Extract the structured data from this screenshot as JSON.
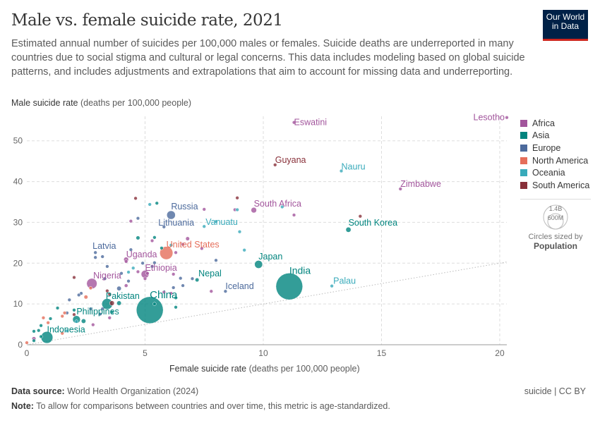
{
  "header": {
    "title": "Male vs. female suicide rate, 2021",
    "subtitle": "Estimated annual number of suicides per 100,000 males or females. Suicide deaths are underreported in many countries due to social stigma and cultural or legal concerns. This data includes modeling based on global suicide patterns, and includes adjustments and extrapolations that aim to account for missing data and underreporting.",
    "logo": "Our World in Data"
  },
  "footer": {
    "source_label": "Data source:",
    "source": "World Health Organization (2024)",
    "note_label": "Note:",
    "note": "To allow for comparisons between countries and over time, this metric is age-standardized.",
    "license": "suicide | CC BY"
  },
  "size_legend": {
    "big": "1.4B",
    "small": "600M",
    "caption": "Circles sized by",
    "variable": "Population"
  },
  "chart_data": {
    "type": "scatter",
    "title": "Male vs. female suicide rate, 2021",
    "xlabel": "Female suicide rate",
    "xunit": "(deaths per 100,000 people)",
    "ylabel": "Male suicide rate",
    "yunit": "(deaths per 100,000 people)",
    "xlim": [
      0,
      20.3
    ],
    "ylim": [
      0,
      56
    ],
    "xticks": [
      0,
      5,
      10,
      15,
      20
    ],
    "yticks": [
      0,
      10,
      20,
      30,
      40,
      50
    ],
    "grid": true,
    "reference_line": "y = x (dotted)",
    "legend_position": "right",
    "regions": [
      {
        "name": "Africa",
        "color": "#a2559c"
      },
      {
        "name": "Asia",
        "color": "#00847e"
      },
      {
        "name": "Europe",
        "color": "#4c6a9c"
      },
      {
        "name": "North America",
        "color": "#e56e5a"
      },
      {
        "name": "Oceania",
        "color": "#38aaba"
      },
      {
        "name": "South America",
        "color": "#883039"
      }
    ],
    "labeled_points": [
      {
        "name": "Eswatini",
        "x": 11.3,
        "y": 54.5,
        "region": "Africa",
        "pop": 1.2
      },
      {
        "name": "Lesotho",
        "x": 20.3,
        "y": 55.7,
        "region": "Africa",
        "pop": 2.3
      },
      {
        "name": "Guyana",
        "x": 10.5,
        "y": 44.1,
        "region": "South America",
        "pop": 0.8
      },
      {
        "name": "Nauru",
        "x": 13.3,
        "y": 42.6,
        "region": "Oceania",
        "pop": 0.01
      },
      {
        "name": "Zimbabwe",
        "x": 15.8,
        "y": 38.2,
        "region": "Africa",
        "pop": 16
      },
      {
        "name": "South Africa",
        "x": 9.6,
        "y": 33.0,
        "region": "Africa",
        "pop": 60
      },
      {
        "name": "South Korea",
        "x": 13.6,
        "y": 28.2,
        "region": "Asia",
        "pop": 52
      },
      {
        "name": "Russia",
        "x": 6.1,
        "y": 31.8,
        "region": "Europe",
        "pop": 145
      },
      {
        "name": "Lithuania",
        "x": 5.8,
        "y": 28.9,
        "region": "Europe",
        "pop": 2.8
      },
      {
        "name": "Vanuatu",
        "x": 7.5,
        "y": 29.0,
        "region": "Oceania",
        "pop": 0.3
      },
      {
        "name": "United States",
        "x": 5.9,
        "y": 22.5,
        "region": "North America",
        "pop": 337
      },
      {
        "name": "Uganda",
        "x": 4.2,
        "y": 20.9,
        "region": "Africa",
        "pop": 45
      },
      {
        "name": "Latvia",
        "x": 2.9,
        "y": 22.6,
        "region": "Europe",
        "pop": 1.9
      },
      {
        "name": "Japan",
        "x": 9.8,
        "y": 19.7,
        "region": "Asia",
        "pop": 125
      },
      {
        "name": "Ethiopia",
        "x": 5.0,
        "y": 17.3,
        "region": "Africa",
        "pop": 120
      },
      {
        "name": "Nepal",
        "x": 7.2,
        "y": 15.9,
        "region": "Asia",
        "pop": 30
      },
      {
        "name": "Nigeria",
        "x": 2.75,
        "y": 15.0,
        "region": "Africa",
        "pop": 213
      },
      {
        "name": "India",
        "x": 11.1,
        "y": 14.3,
        "region": "Asia",
        "pop": 1410
      },
      {
        "name": "Palau",
        "x": 12.9,
        "y": 14.4,
        "region": "Oceania",
        "pop": 0.02
      },
      {
        "name": "Iceland",
        "x": 8.4,
        "y": 13.1,
        "region": "Europe",
        "pop": 0.4
      },
      {
        "name": "China",
        "x": 5.2,
        "y": 8.5,
        "region": "Asia",
        "pop": 1420
      },
      {
        "name": "Pakistan",
        "x": 3.4,
        "y": 10.0,
        "region": "Asia",
        "pop": 230
      },
      {
        "name": "Philippines",
        "x": 2.1,
        "y": 6.2,
        "region": "Asia",
        "pop": 114
      },
      {
        "name": "Indonesia",
        "x": 0.85,
        "y": 1.8,
        "region": "Asia",
        "pop": 274
      }
    ],
    "other_points": [
      [
        4.6,
        35.9,
        "South America",
        5
      ],
      [
        5.2,
        34.4,
        "Oceania",
        1
      ],
      [
        5.5,
        34.7,
        "Asia",
        7
      ],
      [
        4.4,
        30.3,
        "Africa",
        3
      ],
      [
        4.7,
        31.0,
        "Europe",
        9
      ],
      [
        7.5,
        33.2,
        "Africa",
        5
      ],
      [
        8.8,
        33.1,
        "Africa",
        3
      ],
      [
        8.9,
        33.1,
        "Oceania",
        0.5
      ],
      [
        8.9,
        36.0,
        "South America",
        1
      ],
      [
        10.8,
        33.8,
        "Oceania",
        0.2
      ],
      [
        11.3,
        31.8,
        "Africa",
        1
      ],
      [
        14.1,
        31.5,
        "South America",
        1
      ],
      [
        8.0,
        30.2,
        "Oceania",
        0.1
      ],
      [
        9.0,
        27.7,
        "Oceania",
        0.1
      ],
      [
        4.7,
        26.2,
        "Asia",
        30
      ],
      [
        5.3,
        25.5,
        "Africa",
        5
      ],
      [
        5.4,
        26.3,
        "Asia",
        3
      ],
      [
        6.8,
        26.0,
        "Africa",
        30
      ],
      [
        7.4,
        23.6,
        "Africa",
        3
      ],
      [
        9.2,
        23.2,
        "Oceania",
        0.3
      ],
      [
        6.1,
        24.4,
        "Oceania",
        0.2
      ],
      [
        6.6,
        24.6,
        "Africa",
        5
      ],
      [
        5.7,
        23.7,
        "Asia",
        10
      ],
      [
        4.4,
        23.3,
        "Europe",
        4
      ],
      [
        4.2,
        20.4,
        "Africa",
        10
      ],
      [
        6.3,
        22.6,
        "Africa",
        15
      ],
      [
        2.9,
        21.4,
        "Europe",
        1
      ],
      [
        3.2,
        21.6,
        "Europe",
        6
      ],
      [
        8.0,
        20.7,
        "Europe",
        2
      ],
      [
        4.9,
        20.0,
        "Europe",
        2
      ],
      [
        5.3,
        19.2,
        "Europe",
        3
      ],
      [
        5.4,
        20.1,
        "Europe",
        2
      ],
      [
        3.4,
        19.2,
        "Europe",
        10
      ],
      [
        4.0,
        17.5,
        "Europe",
        7
      ],
      [
        4.3,
        17.8,
        "Oceania",
        0.2
      ],
      [
        4.7,
        17.9,
        "Africa",
        4
      ],
      [
        5.0,
        16.2,
        "Africa",
        8
      ],
      [
        5.1,
        17.5,
        "Africa",
        4
      ],
      [
        6.2,
        17.3,
        "Africa",
        3
      ],
      [
        7.0,
        16.2,
        "Europe",
        4
      ],
      [
        3.9,
        13.8,
        "Europe",
        40
      ],
      [
        4.2,
        14.5,
        "Africa",
        25
      ],
      [
        4.3,
        15.6,
        "Europe",
        2
      ],
      [
        3.3,
        16.2,
        "Europe",
        2
      ],
      [
        2.0,
        16.5,
        "South America",
        3
      ],
      [
        2.7,
        13.9,
        "North America",
        2
      ],
      [
        6.2,
        14.0,
        "Europe",
        5
      ],
      [
        6.6,
        14.5,
        "Europe",
        3
      ],
      [
        7.8,
        13.1,
        "Africa",
        5
      ],
      [
        6.1,
        12.6,
        "Africa",
        3
      ],
      [
        6.3,
        11.5,
        "Asia",
        15
      ],
      [
        3.4,
        13.2,
        "South America",
        3
      ],
      [
        3.5,
        12.4,
        "South America",
        18
      ],
      [
        2.5,
        11.7,
        "North America",
        30
      ],
      [
        2.2,
        12.2,
        "Europe",
        1
      ],
      [
        1.8,
        11.0,
        "Europe",
        1
      ],
      [
        2.3,
        12.6,
        "Europe",
        2
      ],
      [
        3.6,
        10.2,
        "South America",
        45
      ],
      [
        3.9,
        10.2,
        "Asia",
        40
      ],
      [
        3.2,
        8.8,
        "Europe",
        3
      ],
      [
        2.0,
        8.5,
        "Asia",
        5
      ],
      [
        1.7,
        7.8,
        "Europe",
        2
      ],
      [
        2.7,
        8.8,
        "Europe",
        3
      ],
      [
        3.1,
        7.5,
        "Europe",
        1
      ],
      [
        3.6,
        8.0,
        "Asia",
        6
      ],
      [
        2.4,
        5.8,
        "Asia",
        40
      ],
      [
        1.3,
        9.0,
        "Asia",
        1
      ],
      [
        1.6,
        7.8,
        "North America",
        1
      ],
      [
        2.0,
        7.4,
        "South America",
        10
      ],
      [
        1.5,
        7.0,
        "North America",
        1
      ],
      [
        2.1,
        5.7,
        "Oceania",
        1
      ],
      [
        2.8,
        4.9,
        "Africa",
        10
      ],
      [
        1.0,
        6.4,
        "Asia",
        2
      ],
      [
        0.9,
        5.4,
        "North America",
        2
      ],
      [
        0.7,
        6.6,
        "North America",
        0.5
      ],
      [
        0.6,
        4.7,
        "Asia",
        3
      ],
      [
        0.5,
        3.5,
        "Asia",
        5
      ],
      [
        0.3,
        3.3,
        "Asia",
        6
      ],
      [
        0.6,
        2.0,
        "Asia",
        8
      ],
      [
        0.3,
        1.5,
        "Africa",
        30
      ],
      [
        1.7,
        3.4,
        "Oceania",
        0.2
      ],
      [
        1.5,
        2.8,
        "North America",
        0.5
      ],
      [
        0.0,
        0.5,
        "North America",
        0.5
      ],
      [
        0.3,
        1.0,
        "Asia",
        10
      ],
      [
        5.4,
        10.0,
        "Asia",
        10
      ],
      [
        3.5,
        6.6,
        "Africa",
        2
      ],
      [
        6.3,
        9.2,
        "Asia",
        5
      ],
      [
        6.5,
        16.3,
        "Europe",
        2
      ],
      [
        5.8,
        12.9,
        "Africa",
        3
      ],
      [
        4.5,
        18.8,
        "Oceania",
        0.1
      ]
    ]
  }
}
